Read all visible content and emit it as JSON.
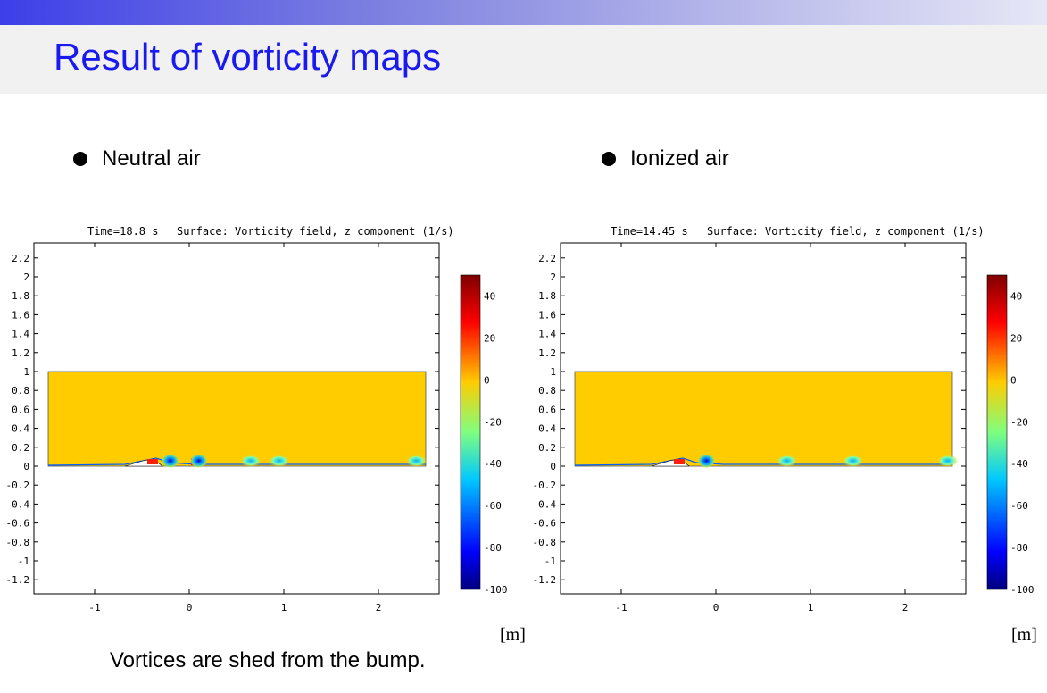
{
  "slide": {
    "title": "Result of vorticity maps",
    "caption": "Vortices are shed from the bump."
  },
  "bullets": [
    {
      "label": "Neutral air"
    },
    {
      "label": "Ionized air"
    }
  ],
  "colors": {
    "title": "#1a1aee",
    "background_field": "#ffcc00",
    "colormap": [
      "#00007f",
      "#0000ff",
      "#00c8ff",
      "#7fff7f",
      "#ffcc00",
      "#ff0000",
      "#7f0000"
    ]
  },
  "panels": [
    {
      "time_label": "Time=18.8 s",
      "surface_label": "Surface: Vorticity field, z component (1/s)",
      "unit": "[m]",
      "y_ticks": [
        "2.2",
        "2",
        "1.8",
        "1.6",
        "1.4",
        "1.2",
        "1",
        "0.8",
        "0.6",
        "0.4",
        "0.2",
        "0",
        "-0.2",
        "-0.4",
        "-0.6",
        "-0.8",
        "-1",
        "-1.2"
      ],
      "x_ticks": [
        "-1",
        "0",
        "1",
        "2"
      ],
      "colorbar_ticks": [
        "40",
        "20",
        "0",
        "-20",
        "-40",
        "-60",
        "-80",
        "-100"
      ],
      "vortices_x": [
        -0.2,
        0.1,
        0.65,
        0.95,
        2.4
      ]
    },
    {
      "time_label": "Time=14.45 s",
      "surface_label": "Surface: Vorticity field, z component (1/s)",
      "unit": "[m]",
      "y_ticks": [
        "2.2",
        "2",
        "1.8",
        "1.6",
        "1.4",
        "1.2",
        "1",
        "0.8",
        "0.6",
        "0.4",
        "0.2",
        "0",
        "-0.2",
        "-0.4",
        "-0.6",
        "-0.8",
        "-1",
        "-1.2"
      ],
      "x_ticks": [
        "-1",
        "0",
        "1",
        "2"
      ],
      "colorbar_ticks": [
        "40",
        "20",
        "0",
        "-20",
        "-40",
        "-60",
        "-80",
        "-100"
      ],
      "vortices_x": [
        -0.1,
        0.75,
        1.45,
        2.45
      ]
    }
  ]
}
